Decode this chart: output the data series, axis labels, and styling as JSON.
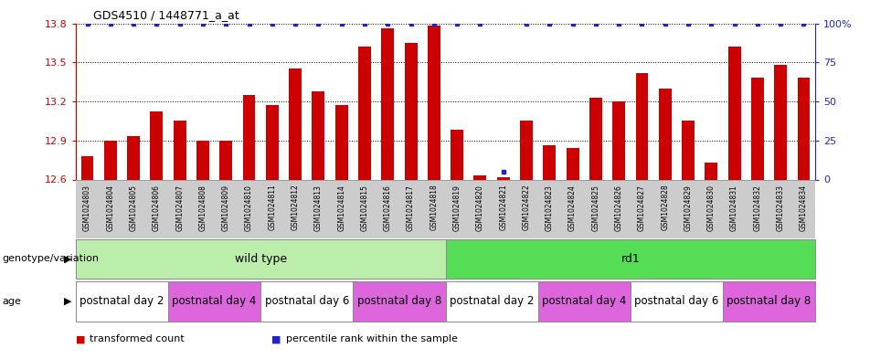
{
  "title": "GDS4510 / 1448771_a_at",
  "samples": [
    "GSM1024803",
    "GSM1024804",
    "GSM1024805",
    "GSM1024806",
    "GSM1024807",
    "GSM1024808",
    "GSM1024809",
    "GSM1024810",
    "GSM1024811",
    "GSM1024812",
    "GSM1024813",
    "GSM1024814",
    "GSM1024815",
    "GSM1024816",
    "GSM1024817",
    "GSM1024818",
    "GSM1024819",
    "GSM1024820",
    "GSM1024821",
    "GSM1024822",
    "GSM1024823",
    "GSM1024824",
    "GSM1024825",
    "GSM1024826",
    "GSM1024827",
    "GSM1024828",
    "GSM1024829",
    "GSM1024830",
    "GSM1024831",
    "GSM1024832",
    "GSM1024833",
    "GSM1024834"
  ],
  "bar_values": [
    12.78,
    12.9,
    12.93,
    13.12,
    13.05,
    12.9,
    12.9,
    13.25,
    13.17,
    13.45,
    13.28,
    13.17,
    13.62,
    13.76,
    13.65,
    13.78,
    12.98,
    12.63,
    12.62,
    13.05,
    12.86,
    12.84,
    13.23,
    13.2,
    13.42,
    13.3,
    13.05,
    12.73,
    13.62,
    13.38,
    13.48,
    13.38
  ],
  "percentile_values": [
    100,
    100,
    100,
    100,
    100,
    100,
    100,
    100,
    100,
    100,
    100,
    100,
    100,
    100,
    100,
    100,
    100,
    100,
    5,
    100,
    100,
    100,
    100,
    100,
    100,
    100,
    100,
    100,
    100,
    100,
    100,
    100
  ],
  "ylim_left": [
    12.6,
    13.8
  ],
  "ylim_right": [
    0,
    100
  ],
  "yticks_left": [
    12.6,
    12.9,
    13.2,
    13.5,
    13.8
  ],
  "yticks_right": [
    0,
    25,
    50,
    75,
    100
  ],
  "bar_color": "#cc0000",
  "percentile_color": "#2222cc",
  "xtick_bg_color": "#cccccc",
  "genotype_groups": [
    {
      "label": "wild type",
      "start": 0,
      "end": 16,
      "color": "#bbeeaa"
    },
    {
      "label": "rd1",
      "start": 16,
      "end": 32,
      "color": "#55dd55"
    }
  ],
  "age_groups": [
    {
      "label": "postnatal day 2",
      "start": 0,
      "end": 4,
      "color": "#ffffff"
    },
    {
      "label": "postnatal day 4",
      "start": 4,
      "end": 8,
      "color": "#dd66dd"
    },
    {
      "label": "postnatal day 6",
      "start": 8,
      "end": 12,
      "color": "#ffffff"
    },
    {
      "label": "postnatal day 8",
      "start": 12,
      "end": 16,
      "color": "#dd66dd"
    },
    {
      "label": "postnatal day 2",
      "start": 16,
      "end": 20,
      "color": "#ffffff"
    },
    {
      "label": "postnatal day 4",
      "start": 20,
      "end": 24,
      "color": "#dd66dd"
    },
    {
      "label": "postnatal day 6",
      "start": 24,
      "end": 28,
      "color": "#ffffff"
    },
    {
      "label": "postnatal day 8",
      "start": 28,
      "end": 32,
      "color": "#dd66dd"
    }
  ],
  "legend_items": [
    {
      "label": "transformed count",
      "color": "#cc0000"
    },
    {
      "label": "percentile rank within the sample",
      "color": "#2222cc"
    }
  ],
  "genotype_label": "genotype/variation",
  "age_label": "age"
}
